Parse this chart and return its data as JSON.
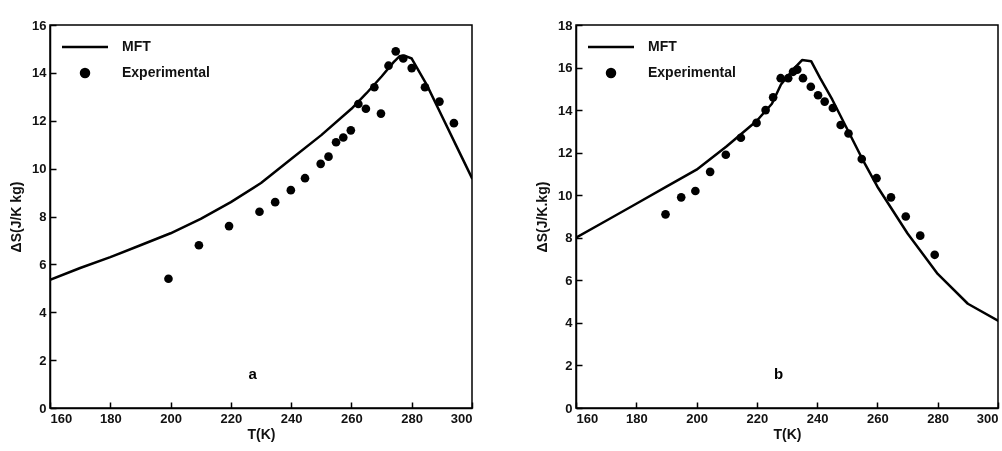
{
  "chart_data": [
    {
      "type": "line",
      "xlabel": "T(K)",
      "ylabel": "ΔS(J/K kg)",
      "xlim": [
        160,
        300
      ],
      "xticks": [
        160,
        180,
        200,
        220,
        240,
        260,
        280,
        300
      ],
      "ylim": [
        0,
        16
      ],
      "yticks": [
        0,
        2,
        4,
        6,
        8,
        10,
        12,
        14,
        16
      ],
      "grid": false,
      "legend": "top left",
      "annotations": [
        "a"
      ],
      "series": [
        {
          "name": "MFT",
          "color": "#000000",
          "line_style": "solid",
          "x": [
            160,
            170,
            180,
            190,
            200,
            210,
            220,
            230,
            240,
            250,
            260,
            265,
            270,
            274,
            276,
            278,
            280,
            285,
            290,
            295,
            300
          ],
          "values": [
            5.35,
            5.85,
            6.3,
            6.8,
            7.3,
            7.9,
            8.6,
            9.4,
            10.4,
            11.4,
            12.5,
            13.15,
            13.85,
            14.45,
            14.7,
            14.7,
            14.6,
            13.5,
            12.2,
            10.9,
            9.6
          ]
        },
        {
          "name": "Experimental",
          "type": "scatter",
          "color": "#000000",
          "marker": "circle",
          "x": [
            199.3,
            209.4,
            219.4,
            229.5,
            234.7,
            239.9,
            244.6,
            249.8,
            252.4,
            254.9,
            257.3,
            259.8,
            262.3,
            264.8,
            269.8,
            267.6,
            272.3,
            274.7,
            277.2,
            280,
            284.4,
            289.2,
            294
          ],
          "values": [
            5.4,
            6.8,
            7.6,
            8.2,
            8.6,
            9.1,
            9.6,
            10.2,
            10.5,
            11.1,
            11.3,
            11.6,
            12.7,
            12.5,
            12.3,
            13.4,
            14.3,
            14.9,
            14.6,
            14.2,
            13.4,
            12.8,
            11.9
          ]
        }
      ]
    },
    {
      "type": "line",
      "xlabel": "T(K)",
      "ylabel": "ΔS(J/K.kg)",
      "xlim": [
        160,
        300
      ],
      "xticks": [
        160,
        180,
        200,
        220,
        240,
        260,
        280,
        300
      ],
      "ylim": [
        0,
        18
      ],
      "yticks": [
        0,
        2,
        4,
        6,
        8,
        10,
        12,
        14,
        16,
        18
      ],
      "grid": false,
      "legend": "top left",
      "annotations": [
        "b"
      ],
      "series": [
        {
          "name": "MFT",
          "color": "#000000",
          "line_style": "solid",
          "x": [
            160,
            170,
            180,
            190,
            200,
            210,
            220,
            225,
            228,
            232,
            235,
            238,
            241,
            245,
            250,
            255,
            260,
            270,
            280,
            290,
            300
          ],
          "values": [
            8.0,
            8.8,
            9.6,
            10.4,
            11.2,
            12.3,
            13.5,
            14.3,
            15.2,
            15.9,
            16.35,
            16.3,
            15.5,
            14.5,
            13.1,
            11.7,
            10.4,
            8.2,
            6.3,
            4.9,
            4.1
          ]
        },
        {
          "name": "Experimental",
          "type": "scatter",
          "color": "#000000",
          "marker": "circle",
          "x": [
            189.7,
            194.9,
            199.6,
            204.5,
            209.7,
            214.7,
            219.9,
            222.9,
            225.4,
            227.9,
            230.4,
            232,
            233.4,
            235.3,
            237.9,
            240.3,
            242.5,
            245.2,
            247.8,
            250.4,
            254.8,
            259.7,
            264.5,
            269.4,
            274.2,
            279
          ],
          "values": [
            9.1,
            9.9,
            10.2,
            11.1,
            11.9,
            12.7,
            13.4,
            14,
            14.6,
            15.5,
            15.5,
            15.8,
            15.9,
            15.5,
            15.1,
            14.7,
            14.4,
            14.1,
            13.3,
            12.9,
            11.7,
            10.8,
            9.9,
            9,
            8.1,
            7.2
          ]
        }
      ]
    }
  ]
}
